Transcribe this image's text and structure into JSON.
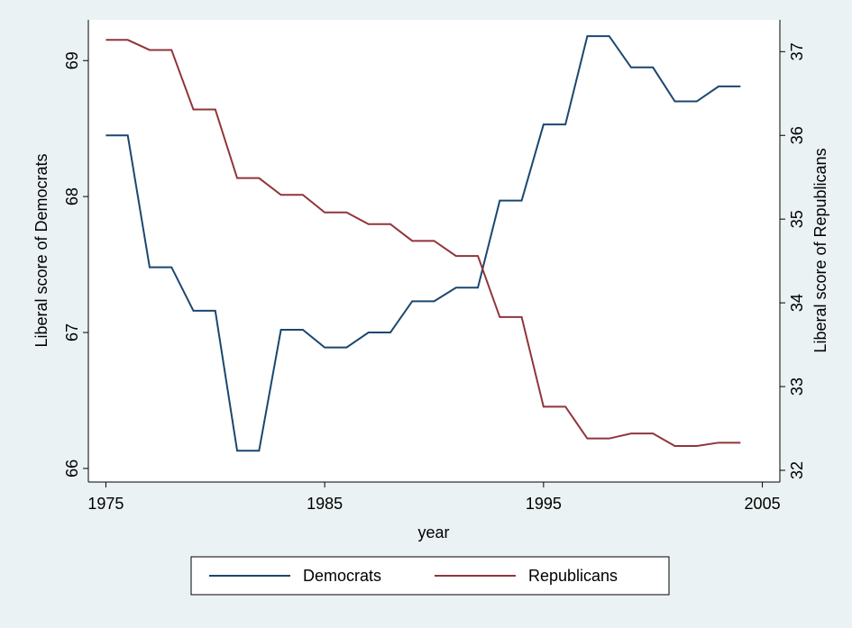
{
  "chart_data": {
    "type": "line",
    "x": [
      1975,
      1976,
      1977,
      1978,
      1979,
      1980,
      1981,
      1982,
      1983,
      1984,
      1985,
      1986,
      1987,
      1988,
      1989,
      1990,
      1991,
      1992,
      1993,
      1994,
      1995,
      1996,
      1997,
      1998,
      1999,
      2000,
      2001,
      2002,
      2003,
      2004
    ],
    "xlabel": "year",
    "ylabel": "Liberal score of Democrats",
    "y2label": "Liberal score of Republicans",
    "series": [
      {
        "name": "Democrats",
        "color": "#1a476f",
        "values": [
          68.45,
          68.45,
          67.48,
          67.48,
          67.16,
          67.16,
          66.13,
          66.13,
          67.02,
          67.02,
          66.89,
          66.89,
          67.0,
          67.0,
          67.23,
          67.23,
          67.33,
          67.33,
          67.97,
          67.97,
          68.53,
          68.53,
          69.18,
          69.18,
          68.95,
          68.95,
          68.7,
          68.7,
          68.81,
          68.81
        ]
      },
      {
        "name": "Republicans",
        "color": "#90353b",
        "axis": "y2",
        "values": [
          37.14,
          37.14,
          37.02,
          37.02,
          36.31,
          36.31,
          35.49,
          35.49,
          35.29,
          35.29,
          35.08,
          35.08,
          34.94,
          34.94,
          34.74,
          34.74,
          34.56,
          34.56,
          33.83,
          33.83,
          32.76,
          32.76,
          32.38,
          32.38,
          32.44,
          32.44,
          32.29,
          32.29,
          32.33,
          32.33
        ]
      }
    ],
    "xlim": [
      1974.2,
      2005.8
    ],
    "xticks": [
      1975,
      1985,
      1995,
      2005
    ],
    "ylim": [
      65.9,
      69.3
    ],
    "yticks": [
      66,
      67,
      68,
      69
    ],
    "y2lim": [
      31.86,
      37.38
    ],
    "y2ticks": [
      32,
      33,
      34,
      35,
      36,
      37
    ],
    "legend": "bottom"
  }
}
